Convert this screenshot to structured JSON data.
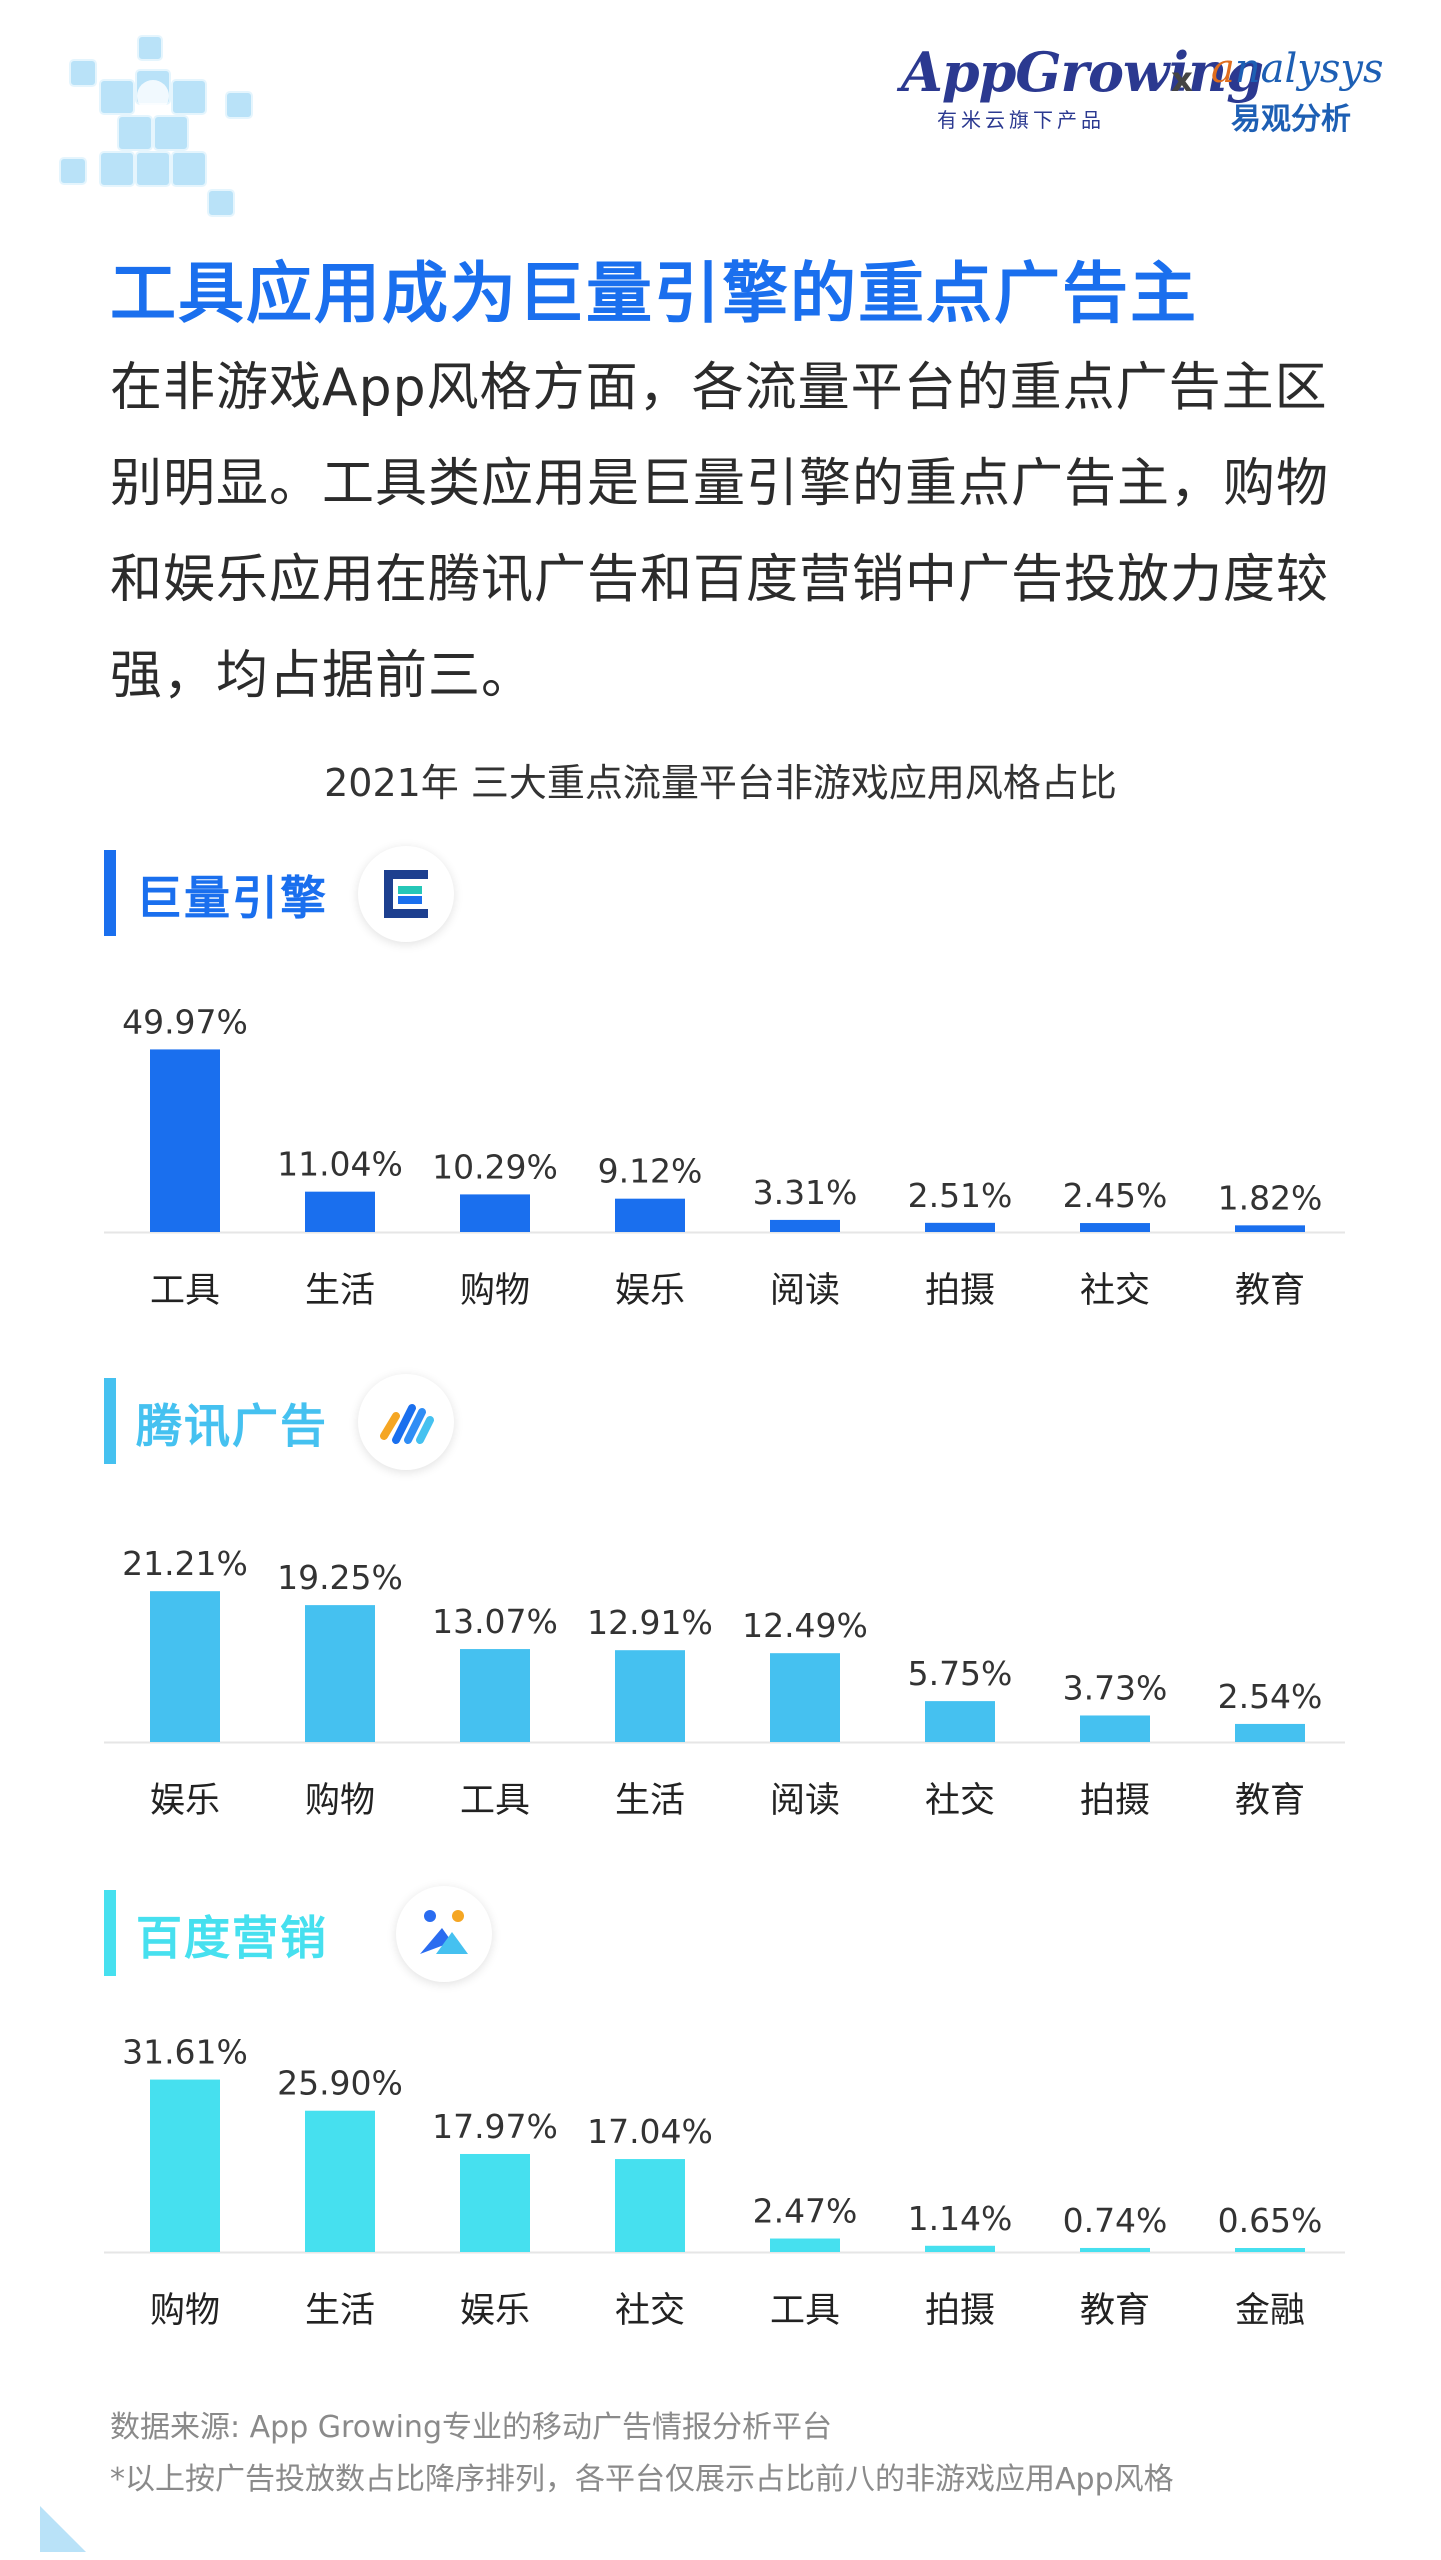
{
  "brand": {
    "app_growing": "AppGrowing",
    "app_growing_sub": "有米云旗下产品",
    "separator": "x",
    "analysys_first": "a",
    "analysys_rest": "nalysys",
    "analysys_sub": "易观分析"
  },
  "headline": "工具应用成为巨量引擎的重点广告主",
  "intro": "在非游戏App风格方面，各流量平台的重点广告主区别明显。工具类应用是巨量引擎的重点广告主，购物和娱乐应用在腾讯广告和百度营销中广告投放力度较强，均占据前三。",
  "footer": {
    "source": "数据来源: App Growing专业的移动广告情报分析平台",
    "note": "*以上按广告投放数占比降序排列，各平台仅展示占比前八的非游戏应用App风格"
  },
  "chart_data": [
    {
      "type": "bar",
      "title": "2021年 三大重点流量平台非游戏应用风格占比",
      "platform": "巨量引擎",
      "color": "#1a6fee",
      "logo": "juliang-engine-logo",
      "categories": [
        "工具",
        "生活",
        "购物",
        "娱乐",
        "阅读",
        "拍摄",
        "社交",
        "教育"
      ],
      "values": [
        49.97,
        11.04,
        10.29,
        9.12,
        3.31,
        2.51,
        2.45,
        1.82
      ],
      "labels": [
        "49.97%",
        "11.04%",
        "10.29%",
        "9.12%",
        "3.31%",
        "2.51%",
        "2.45%",
        "1.82%"
      ],
      "ylim": [
        0,
        52
      ]
    },
    {
      "type": "bar",
      "platform": "腾讯广告",
      "color": "#45c1f0",
      "logo": "tencent-ads-logo",
      "categories": [
        "娱乐",
        "购物",
        "工具",
        "生活",
        "阅读",
        "社交",
        "拍摄",
        "教育"
      ],
      "values": [
        21.21,
        19.25,
        13.07,
        12.91,
        12.49,
        5.75,
        3.73,
        2.54
      ],
      "labels": [
        "21.21%",
        "19.25%",
        "13.07%",
        "12.91%",
        "12.49%",
        "5.75%",
        "3.73%",
        "2.54%"
      ],
      "ylim": [
        0,
        22.5
      ]
    },
    {
      "type": "bar",
      "platform": "百度营销",
      "color": "#46e0ef",
      "logo": "baidu-marketing-logo",
      "categories": [
        "购物",
        "生活",
        "娱乐",
        "社交",
        "工具",
        "拍摄",
        "教育",
        "金融"
      ],
      "values": [
        31.61,
        25.9,
        17.97,
        17.04,
        2.47,
        1.14,
        0.74,
        0.65
      ],
      "labels": [
        "31.61%",
        "25.90%",
        "17.97%",
        "17.04%",
        "2.47%",
        "1.14%",
        "0.74%",
        "0.65%"
      ],
      "ylim": [
        0,
        33
      ]
    }
  ]
}
